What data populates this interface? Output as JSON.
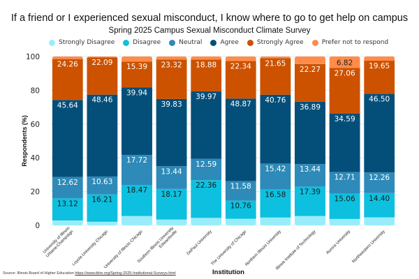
{
  "chart_data": {
    "type": "bar",
    "stacked": true,
    "title": "If a friend or I experienced sexual misconduct, I know where to go to get help on campus",
    "subtitle": "Spring 2025 Campus Sexual Misconduct Climate Survey",
    "xlabel": "Institution",
    "ylabel": "Respondents (%)",
    "ylim": [
      0,
      100
    ],
    "yticks": [
      0,
      20,
      40,
      60,
      80,
      100
    ],
    "grid": true,
    "legend_position": "top",
    "categories": [
      "University of Illinois Urbana-Champaign",
      "Loyola University Chicago",
      "University of Illinois Chicago",
      "Southern Illinois University Edwardsville",
      "DePaul University",
      "The University of Chicago",
      "Northern Illinois University",
      "Illinois Institute of Technology",
      "Aurora University",
      "Northwestern University"
    ],
    "category_lines": [
      [
        "University of Illinois",
        "Urbana-Champaign"
      ],
      [
        "Loyola University Chicago"
      ],
      [
        "University of Illinois Chicago"
      ],
      [
        "Southern Illinois University",
        "Edwardsville"
      ],
      [
        "DePaul University"
      ],
      [
        "The University of Chicago"
      ],
      [
        "Northern Illinois University"
      ],
      [
        "Illinois Institute of Technology"
      ],
      [
        "Aurora University"
      ],
      [
        "Northwestern University"
      ]
    ],
    "series": [
      {
        "name": "Strongly Disagree",
        "color": "#99EDFB",
        "label_color": "#222222",
        "labeled": false,
        "values": [
          2.86,
          2.1,
          5.5,
          3.4,
          4.4,
          3.85,
          4.6,
          5.5,
          3.76,
          4.7
        ]
      },
      {
        "name": "Disagree",
        "color": "#0DC0E0",
        "label_color": "#1a1a1a",
        "labeled": true,
        "values": [
          13.12,
          16.21,
          18.47,
          18.17,
          22.36,
          10.76,
          16.58,
          17.39,
          15.06,
          14.4
        ]
      },
      {
        "name": "Neutral",
        "color": "#2E8AB8",
        "label_color": "#ffffff",
        "labeled": true,
        "values": [
          12.62,
          10.63,
          17.72,
          13.44,
          12.59,
          11.58,
          15.42,
          13.44,
          12.71,
          12.26
        ]
      },
      {
        "name": "Agree",
        "color": "#044F7A",
        "label_color": "#ffffff",
        "labeled": true,
        "values": [
          45.64,
          48.46,
          39.94,
          39.83,
          39.97,
          48.87,
          40.76,
          36.89,
          34.59,
          46.5
        ]
      },
      {
        "name": "Strongly Agree",
        "color": "#CC5200",
        "label_color": "#ffffff",
        "labeled": true,
        "values": [
          24.26,
          22.09,
          15.39,
          23.32,
          18.88,
          22.34,
          21.65,
          22.27,
          27.06,
          19.65
        ]
      },
      {
        "name": "Prefer not to respond",
        "color": "#FF8C4A",
        "label_color": "#222222",
        "labeled": false,
        "labeled_indices": [
          8
        ],
        "values": [
          1.5,
          0.51,
          2.98,
          1.84,
          1.8,
          2.6,
          0.99,
          4.51,
          6.82,
          2.49
        ]
      }
    ],
    "source_prefix": "Source: Illinois Board of Higher Education ",
    "source_link": "https://www.ibhe.org/Spring-2025-Institutional-Surveys.html"
  }
}
